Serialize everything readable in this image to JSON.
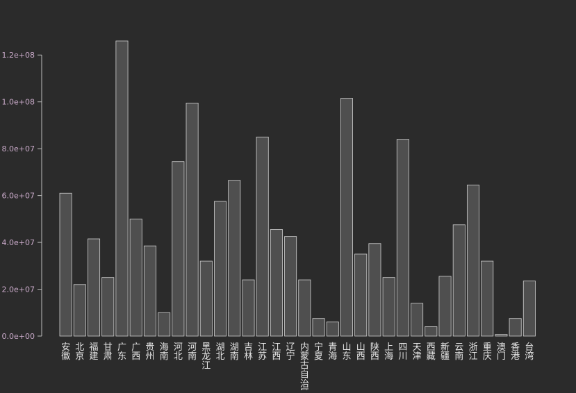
{
  "colors": {
    "background": "#2b2b2b",
    "bar_fill": "#4f4f4f",
    "bar_stroke": "#d0d0d0",
    "axis": "#bdbdbd",
    "tick_label": "#c8a9c8",
    "category_label": "#e6e6e6"
  },
  "chart_data": {
    "type": "bar",
    "title": "",
    "xlabel": "",
    "ylabel": "",
    "ylim": [
      0,
      126000000
    ],
    "y_ticks": [
      0,
      20000000,
      40000000,
      60000000,
      80000000,
      100000000,
      120000000
    ],
    "y_tick_labels": [
      "0.0e+00",
      "2.0e+07",
      "4.0e+07",
      "6.0e+07",
      "8.0e+07",
      "1.0e+08",
      "1.2e+08"
    ],
    "grid": false,
    "legend": "none",
    "categories": [
      "安徽",
      "北京",
      "福建",
      "甘肃",
      "广东",
      "广西",
      "贵州",
      "海南",
      "河北",
      "河南",
      "黑龙江",
      "湖北",
      "湖南",
      "吉林",
      "江苏",
      "江西",
      "辽宁",
      "内蒙古自治区",
      "宁夏",
      "青海",
      "山东",
      "山西",
      "陕西",
      "上海",
      "四川",
      "天津",
      "西藏",
      "新疆",
      "云南",
      "浙江",
      "重庆",
      "澳门",
      "香港",
      "台湾"
    ],
    "values": [
      61000000,
      22000000,
      41500000,
      25000000,
      126000000,
      50000000,
      38500000,
      10000000,
      74500000,
      99500000,
      32000000,
      57500000,
      66500000,
      24000000,
      85000000,
      45500000,
      42500000,
      24000000,
      7500000,
      6000000,
      101500000,
      35000000,
      39500000,
      25000000,
      84000000,
      14000000,
      4000000,
      25500000,
      47500000,
      64500000,
      32000000,
      700000,
      7500000,
      23500000
    ]
  }
}
